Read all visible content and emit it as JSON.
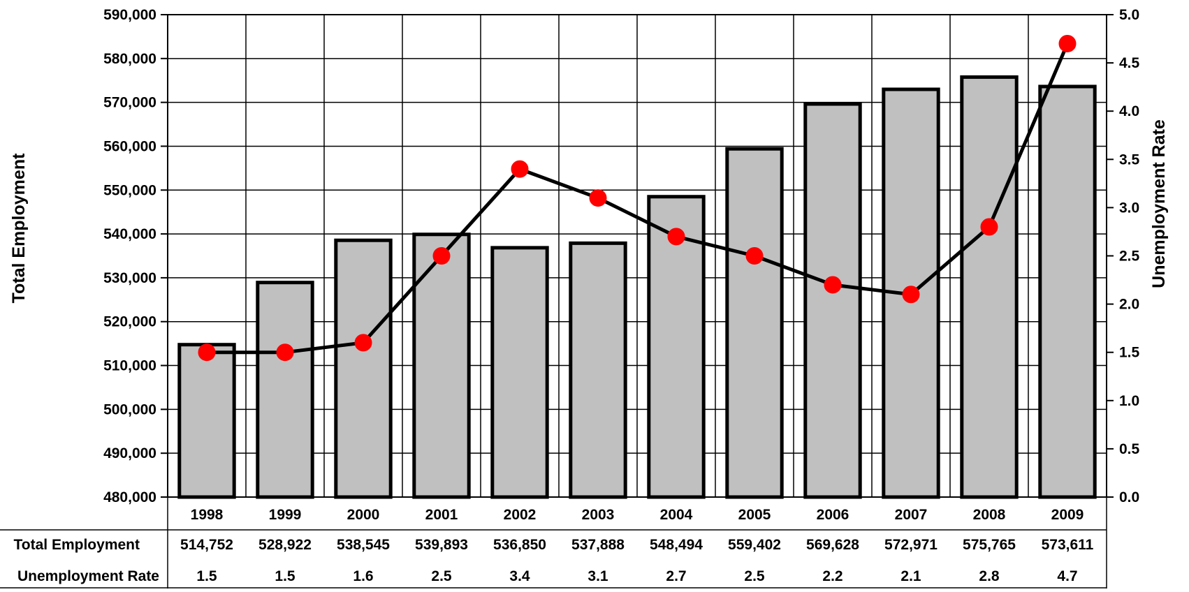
{
  "chart_data": {
    "type": "bar",
    "categories": [
      "1998",
      "1999",
      "2000",
      "2001",
      "2002",
      "2003",
      "2004",
      "2005",
      "2006",
      "2007",
      "2008",
      "2009"
    ],
    "series": [
      {
        "name": "Total Employment",
        "kind": "bar",
        "axis": "left",
        "color": "#c0c0c0",
        "values": [
          514752,
          528922,
          538545,
          539893,
          536850,
          537888,
          548494,
          559402,
          569628,
          572971,
          575765,
          573611
        ]
      },
      {
        "name": "Unemployment Rate",
        "kind": "line",
        "axis": "right",
        "color": "#000000",
        "marker_color": "#ff0000",
        "values": [
          1.5,
          1.5,
          1.6,
          2.5,
          3.4,
          3.1,
          2.7,
          2.5,
          2.2,
          2.1,
          2.8,
          4.7
        ]
      }
    ],
    "ylabel": "Total Employment",
    "y2label": "Unemployment Rate",
    "ylim": [
      480000,
      590000
    ],
    "y2lim": [
      0.0,
      5.0
    ],
    "yticks": [
      "480,000",
      "490,000",
      "500,000",
      "510,000",
      "520,000",
      "530,000",
      "540,000",
      "550,000",
      "560,000",
      "570,000",
      "580,000",
      "590,000"
    ],
    "y2ticks": [
      "0.0",
      "0.5",
      "1.0",
      "1.5",
      "2.0",
      "2.5",
      "3.0",
      "3.5",
      "4.0",
      "4.5",
      "5.0"
    ],
    "grid": true,
    "table": {
      "row_labels": [
        "Total Employment",
        "Unemployment Rate"
      ],
      "rows": [
        [
          "514,752",
          "528,922",
          "538,545",
          "539,893",
          "536,850",
          "537,888",
          "548,494",
          "559,402",
          "569,628",
          "572,971",
          "575,765",
          "573,611"
        ],
        [
          "1.5",
          "1.5",
          "1.6",
          "2.5",
          "3.4",
          "3.1",
          "2.7",
          "2.5",
          "2.2",
          "2.1",
          "2.8",
          "4.7"
        ]
      ]
    }
  }
}
